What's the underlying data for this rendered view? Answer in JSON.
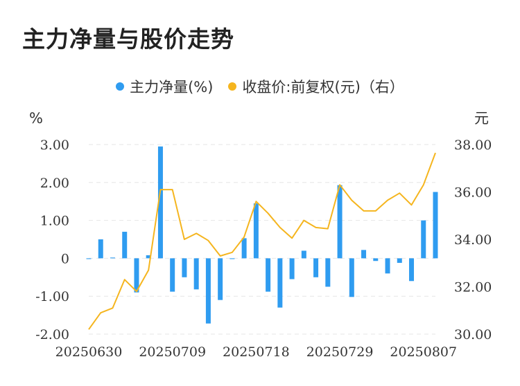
{
  "title": "主力净量与股价走势",
  "legend": {
    "series1": {
      "label": "主力净量(%)",
      "color": "#2f9cf0"
    },
    "series2": {
      "label": "收盘价:前复权(元)（右）",
      "color": "#f5b51e"
    }
  },
  "chart_data": {
    "type": "bar+line",
    "left_unit": "%",
    "right_unit": "元",
    "left_ticks": [
      "3.00",
      "2.00",
      "1.00",
      "0",
      "-1.00",
      "-2.00"
    ],
    "right_ticks": [
      "38.00",
      "36.00",
      "34.00",
      "32.00",
      "30.00"
    ],
    "ylim_left": [
      -2,
      3
    ],
    "ylim_right": [
      30,
      38
    ],
    "x_labels": [
      "20250630",
      "20250709",
      "20250718",
      "20250729",
      "20250807"
    ],
    "x_label_indices": [
      0,
      7,
      14,
      21,
      28
    ],
    "series": [
      {
        "name": "主力净量(%)",
        "type": "bar",
        "values": [
          -0.02,
          0.5,
          0.02,
          0.7,
          -0.9,
          0.08,
          2.95,
          -0.88,
          -0.5,
          -0.82,
          -1.72,
          -1.1,
          -0.02,
          0.53,
          1.45,
          -0.88,
          -1.3,
          -0.55,
          0.2,
          -0.5,
          -0.75,
          1.93,
          -1.02,
          0.22,
          -0.07,
          -0.4,
          -0.12,
          -0.6,
          1.0,
          1.75
        ]
      },
      {
        "name": "收盘价:前复权(元)（右）",
        "type": "line",
        "values": [
          30.2,
          30.9,
          31.1,
          32.3,
          31.8,
          32.7,
          36.1,
          36.1,
          34.0,
          34.25,
          33.95,
          33.3,
          33.45,
          34.1,
          35.6,
          35.1,
          34.5,
          34.05,
          34.8,
          34.5,
          34.45,
          36.3,
          35.65,
          35.2,
          35.2,
          35.65,
          35.95,
          35.45,
          36.3,
          37.65
        ]
      }
    ]
  }
}
